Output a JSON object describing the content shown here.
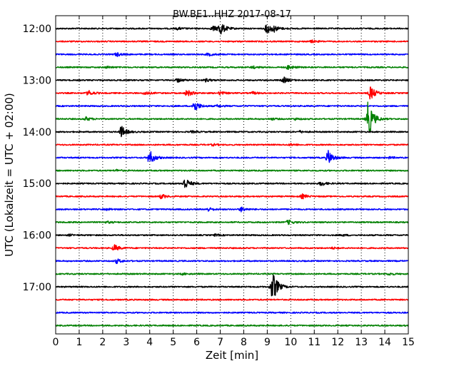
{
  "chart_data": {
    "type": "line",
    "title": "BW.BE1..HHZ 2017-08-17",
    "xlabel": "Zeit  [min]",
    "ylabel": "UTC (Lokalzeit = UTC + 02:00)",
    "xlim": [
      0,
      15
    ],
    "x_ticks": [
      "0",
      "1",
      "2",
      "3",
      "4",
      "5",
      "6",
      "7",
      "8",
      "9",
      "10",
      "11",
      "12",
      "13",
      "14",
      "15"
    ],
    "y_ticks": [
      "12:00",
      "13:00",
      "14:00",
      "15:00",
      "16:00",
      "17:00"
    ],
    "grid": "vertical dotted",
    "trace_interval_min": 15,
    "trace_colors": [
      "#000000",
      "#ff0000",
      "#0000ff",
      "#008000"
    ],
    "traces": [
      {
        "start": "12:00",
        "events": [
          [
            5.2,
            0.15
          ],
          [
            6.7,
            0.35
          ],
          [
            7.0,
            0.9
          ],
          [
            9.0,
            0.75
          ],
          [
            9.3,
            0.3
          ]
        ]
      },
      {
        "start": "12:15",
        "events": [
          [
            10.9,
            0.15
          ]
        ]
      },
      {
        "start": "12:30",
        "events": [
          [
            2.6,
            0.25
          ],
          [
            6.5,
            0.2
          ]
        ]
      },
      {
        "start": "12:45",
        "events": [
          [
            2.2,
            0.12
          ],
          [
            8.4,
            0.15
          ],
          [
            9.9,
            0.3
          ]
        ]
      },
      {
        "start": "13:00",
        "events": [
          [
            5.2,
            0.25
          ],
          [
            6.4,
            0.2
          ],
          [
            9.7,
            0.4
          ]
        ]
      },
      {
        "start": "13:15",
        "events": [
          [
            1.4,
            0.35
          ],
          [
            3.8,
            0.25
          ],
          [
            5.6,
            0.45
          ],
          [
            7.0,
            0.2
          ],
          [
            8.4,
            0.15
          ],
          [
            13.4,
            0.9
          ]
        ]
      },
      {
        "start": "13:30",
        "events": [
          [
            5.9,
            0.8
          ],
          [
            6.9,
            0.15
          ]
        ]
      },
      {
        "start": "13:45",
        "events": [
          [
            1.3,
            0.25
          ],
          [
            9.2,
            0.12
          ],
          [
            10.2,
            0.12
          ],
          [
            13.3,
            2.6
          ]
        ]
      },
      {
        "start": "14:00",
        "events": [
          [
            2.8,
            0.8
          ],
          [
            5.8,
            0.12
          ],
          [
            10.4,
            0.12
          ]
        ]
      },
      {
        "start": "14:15",
        "events": [
          [
            6.7,
            0.12
          ],
          [
            10.0,
            0.12
          ]
        ]
      },
      {
        "start": "14:30",
        "events": [
          [
            4.0,
            1.0
          ],
          [
            11.6,
            1.0
          ],
          [
            14.2,
            0.12
          ]
        ]
      },
      {
        "start": "14:45",
        "events": [
          [
            2.6,
            0.12
          ]
        ]
      },
      {
        "start": "15:00",
        "events": [
          [
            5.5,
            0.8
          ],
          [
            11.3,
            0.3
          ]
        ]
      },
      {
        "start": "15:15",
        "events": [
          [
            4.5,
            0.3
          ],
          [
            10.5,
            0.3
          ]
        ]
      },
      {
        "start": "15:30",
        "events": [
          [
            6.5,
            0.25
          ],
          [
            7.9,
            0.3
          ],
          [
            2.2,
            0.1
          ]
        ]
      },
      {
        "start": "15:45",
        "events": [
          [
            2.2,
            0.12
          ],
          [
            9.9,
            0.3
          ]
        ]
      },
      {
        "start": "16:00",
        "events": [
          [
            0.6,
            0.1
          ],
          [
            6.8,
            0.12
          ],
          [
            12.2,
            0.12
          ]
        ]
      },
      {
        "start": "16:15",
        "events": [
          [
            2.5,
            0.45
          ],
          [
            11.8,
            0.1
          ]
        ]
      },
      {
        "start": "16:30",
        "events": [
          [
            2.6,
            0.3
          ]
        ]
      },
      {
        "start": "16:45",
        "events": [
          [
            5.4,
            0.1
          ],
          [
            14.2,
            0.15
          ]
        ]
      },
      {
        "start": "17:00",
        "events": [
          [
            9.2,
            1.3
          ],
          [
            9.3,
            0.8
          ]
        ]
      },
      {
        "start": "17:15",
        "events": []
      },
      {
        "start": "17:30",
        "events": []
      },
      {
        "start": "17:45",
        "events": []
      }
    ]
  }
}
